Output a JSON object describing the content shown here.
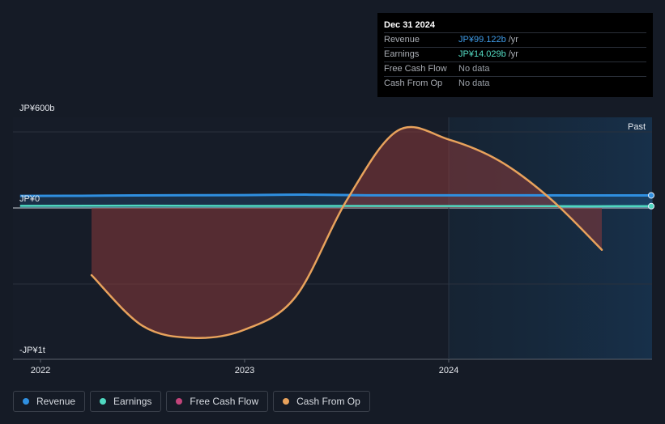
{
  "tooltip": {
    "date": "Dec 31 2024",
    "rows": [
      {
        "label": "Revenue",
        "value": "JP¥99.122b",
        "unit": "/yr"
      },
      {
        "label": "Earnings",
        "value": "JP¥14.029b",
        "unit": "/yr"
      },
      {
        "label": "Free Cash Flow",
        "value": "No data",
        "unit": ""
      },
      {
        "label": "Cash From Op",
        "value": "No data",
        "unit": ""
      }
    ]
  },
  "legend": [
    {
      "label": "Revenue",
      "color": "#2f8fe0"
    },
    {
      "label": "Earnings",
      "color": "#4fd8c0"
    },
    {
      "label": "Free Cash Flow",
      "color": "#c2447a"
    },
    {
      "label": "Cash From Op",
      "color": "#e8a25c"
    }
  ],
  "chart_data": {
    "type": "line",
    "y_tick_labels": [
      "JP¥600b",
      "JP¥0",
      "-JP¥1t"
    ],
    "x_tick_labels": [
      "2022",
      "2023",
      "2024"
    ],
    "past_label": "Past",
    "ylim": [
      -1200,
      600
    ],
    "x_range": [
      2021.9,
      2025.0
    ],
    "series": [
      {
        "name": "Revenue",
        "color": "#2f8fe0",
        "points": [
          [
            2021.9,
            95
          ],
          [
            2022.2,
            96
          ],
          [
            2022.6,
            100
          ],
          [
            2023.0,
            101
          ],
          [
            2023.3,
            105
          ],
          [
            2023.6,
            100
          ],
          [
            2024.0,
            100
          ],
          [
            2024.4,
            100
          ],
          [
            2024.7,
            99
          ],
          [
            2025.0,
            99.122
          ]
        ]
      },
      {
        "name": "Earnings",
        "color": "#4fd8c0",
        "points": [
          [
            2021.9,
            17
          ],
          [
            2022.5,
            18
          ],
          [
            2023.0,
            16
          ],
          [
            2023.5,
            16
          ],
          [
            2024.0,
            15
          ],
          [
            2024.5,
            14
          ],
          [
            2025.0,
            14.029
          ]
        ]
      },
      {
        "name": "Cash From Op",
        "color": "#e8a25c",
        "points": [
          [
            2022.25,
            -530
          ],
          [
            2022.5,
            -930
          ],
          [
            2022.75,
            -1025
          ],
          [
            2023.0,
            -960
          ],
          [
            2023.25,
            -700
          ],
          [
            2023.5,
            60
          ],
          [
            2023.75,
            610
          ],
          [
            2024.0,
            540
          ],
          [
            2024.25,
            370
          ],
          [
            2024.5,
            70
          ],
          [
            2024.75,
            -330
          ]
        ]
      }
    ]
  }
}
